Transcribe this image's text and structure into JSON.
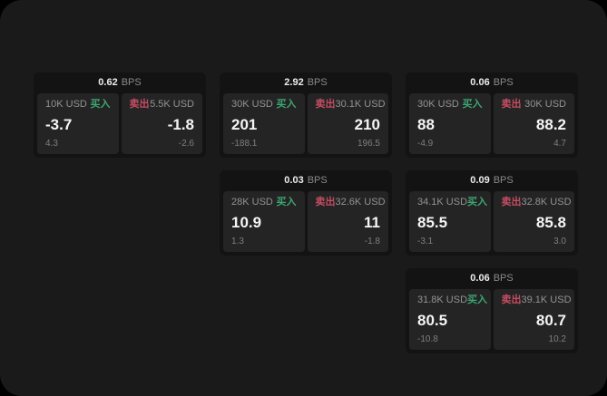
{
  "colors": {
    "buy_green": "#3da573",
    "sell_red": "#c54d62",
    "background": "#1a1a1a",
    "card_background": "#131313",
    "panel_background": "#242424"
  },
  "labels": {
    "buy": "买入",
    "sell": "卖出",
    "bps_unit": "BPS"
  },
  "cards": [
    {
      "row": 1,
      "col": 1,
      "bps": "0.62",
      "buy": {
        "amount": "10K USD",
        "value": "-3.7",
        "delta": "4.3"
      },
      "sell": {
        "amount": "5.5K USD",
        "value": "-1.8",
        "delta": "-2.6"
      }
    },
    {
      "row": 1,
      "col": 2,
      "bps": "2.92",
      "buy": {
        "amount": "30K USD",
        "value": "201",
        "delta": "-188.1"
      },
      "sell": {
        "amount": "30.1K USD",
        "value": "210",
        "delta": "196.5"
      }
    },
    {
      "row": 1,
      "col": 3,
      "bps": "0.06",
      "buy": {
        "amount": "30K USD",
        "value": "88",
        "delta": "-4.9"
      },
      "sell": {
        "amount": "30K USD",
        "value": "88.2",
        "delta": "4.7"
      }
    },
    {
      "row": 2,
      "col": 2,
      "bps": "0.03",
      "buy": {
        "amount": "28K USD",
        "value": "10.9",
        "delta": "1.3"
      },
      "sell": {
        "amount": "32.6K USD",
        "value": "11",
        "delta": "-1.8"
      }
    },
    {
      "row": 2,
      "col": 3,
      "bps": "0.09",
      "buy": {
        "amount": "34.1K USD",
        "value": "85.5",
        "delta": "-3.1"
      },
      "sell": {
        "amount": "32.8K USD",
        "value": "85.8",
        "delta": "3.0"
      }
    },
    {
      "row": 3,
      "col": 3,
      "bps": "0.06",
      "buy": {
        "amount": "31.8K USD",
        "value": "80.5",
        "delta": "-10.8"
      },
      "sell": {
        "amount": "39.1K USD",
        "value": "80.7",
        "delta": "10.2"
      }
    }
  ]
}
